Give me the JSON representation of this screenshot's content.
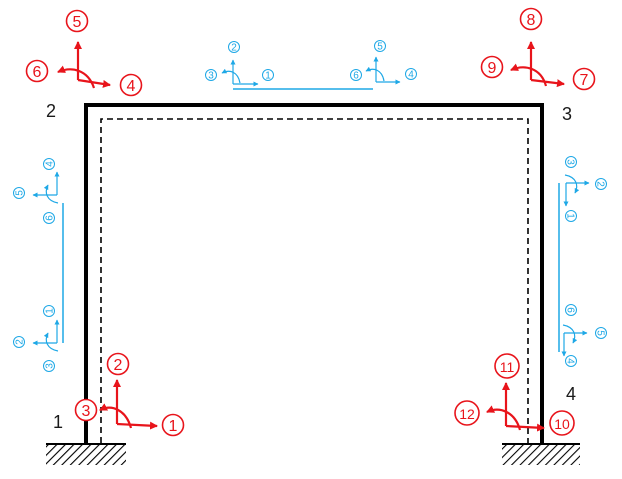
{
  "colors": {
    "frame": "#000000",
    "deflected_shape": "#000000",
    "global_dof": "#e8141b",
    "local_dof": "#1ea8e6",
    "node_label": "#1a1a1a"
  },
  "nodes": {
    "n1": "1",
    "n2": "2",
    "n3": "3",
    "n4": "4"
  },
  "global_dofs": {
    "d1": "1",
    "d2": "2",
    "d3": "3",
    "d4": "4",
    "d5": "5",
    "d6": "6",
    "d7": "7",
    "d8": "8",
    "d9": "9",
    "d10": "10",
    "d11": "11",
    "d12": "12"
  },
  "local_dofs": {
    "beam": {
      "start": {
        "axial": "1",
        "shear": "2",
        "moment": "3"
      },
      "end": {
        "axial": "4",
        "shear": "5",
        "moment": "6"
      }
    },
    "left_column": {
      "top": {
        "axial": "4",
        "shear": "5",
        "moment": "6"
      },
      "bottom": {
        "axial": "1",
        "shear": "2",
        "moment": "3"
      }
    },
    "right_column": {
      "top": {
        "axial": "1",
        "shear": "2",
        "moment": "3"
      },
      "bottom": {
        "axial": "4",
        "shear": "5",
        "moment": "6"
      }
    }
  },
  "icons": {
    "supports": "fixed-support-hatch-icon",
    "global_arrows": "red-dof-arrow-icon",
    "local_arrows": "blue-local-axis-icon"
  }
}
